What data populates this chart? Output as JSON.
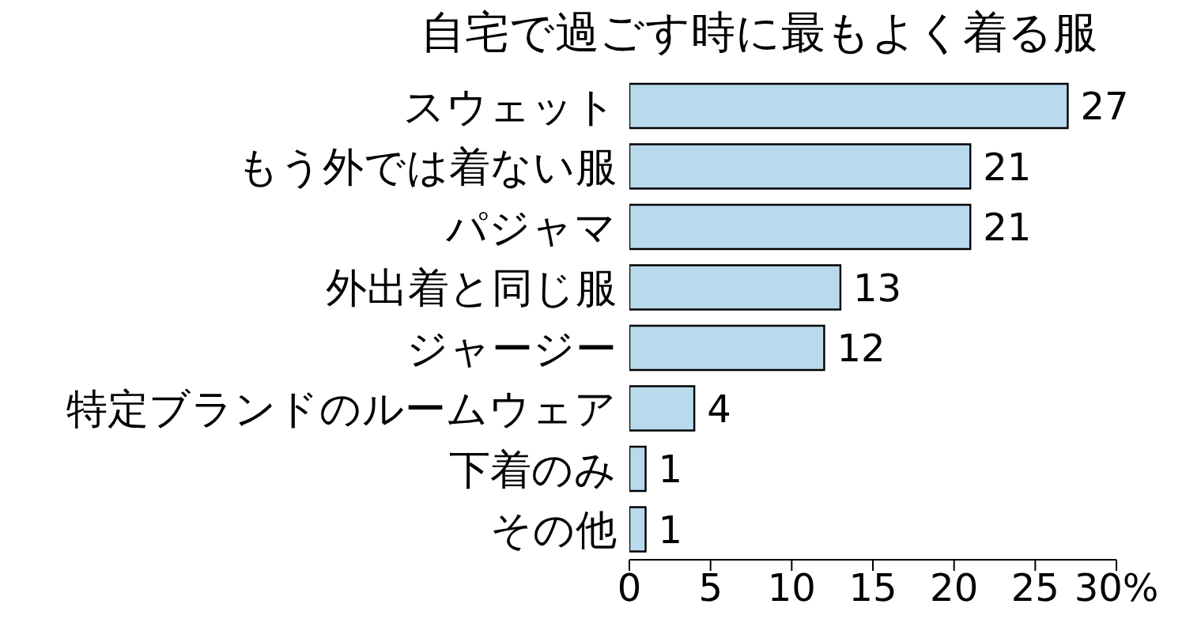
{
  "chart_data": {
    "type": "bar",
    "orientation": "horizontal",
    "title": "自宅で過ごす時に最もよく着る服",
    "categories": [
      "スウェット",
      "もう外では着ない服",
      "パジャマ",
      "外出着と同じ服",
      "ジャージー",
      "特定ブランドのルームウェア",
      "下着のみ",
      "その他"
    ],
    "values": [
      27,
      21,
      21,
      13,
      12,
      4,
      1,
      1
    ],
    "color": "#b9d9ec",
    "xlim": [
      0,
      30
    ],
    "xticks": [
      0,
      5,
      10,
      15,
      20,
      25,
      {
        "value": 30,
        "label": "30%"
      }
    ],
    "data_labels": true
  }
}
